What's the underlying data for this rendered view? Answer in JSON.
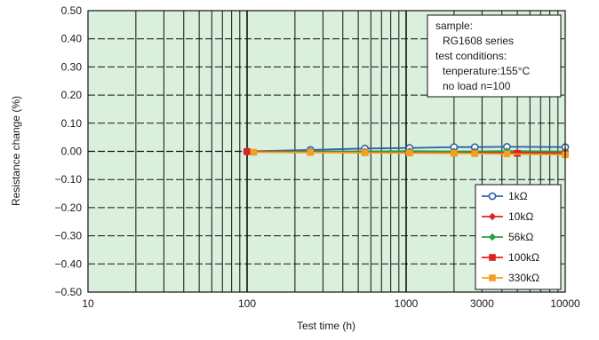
{
  "chart_data": {
    "type": "line",
    "x_scale": "log",
    "xlabel": "Test time (h)",
    "ylabel": "Resistance change (%)",
    "xlim": [
      10,
      10000
    ],
    "ylim": [
      -0.5,
      0.5
    ],
    "x_ticks": [
      {
        "value": 10,
        "label": "10"
      },
      {
        "value": 100,
        "label": "100"
      },
      {
        "value": 1000,
        "label": "1000"
      },
      {
        "value": 3000,
        "label": "3000"
      },
      {
        "value": 10000,
        "label": "10000"
      }
    ],
    "y_ticks": [
      {
        "value": 0.5,
        "label": "0.50"
      },
      {
        "value": 0.4,
        "label": "0.40"
      },
      {
        "value": 0.3,
        "label": "0.30"
      },
      {
        "value": 0.2,
        "label": "0.20"
      },
      {
        "value": 0.1,
        "label": "0.10"
      },
      {
        "value": 0.0,
        "label": "0.00"
      },
      {
        "value": -0.1,
        "label": "−0.10"
      },
      {
        "value": -0.2,
        "label": "−0.20"
      },
      {
        "value": -0.3,
        "label": "−0.30"
      },
      {
        "value": -0.4,
        "label": "−0.40"
      },
      {
        "value": -0.5,
        "label": "−0.50"
      }
    ],
    "grid": true,
    "legend_position": "bottom-right",
    "annotation": {
      "lines": [
        "sample:",
        "RG1608 series",
        "test conditions:",
        "tenperature:155°C",
        "no load   n=100"
      ],
      "position": "top-right"
    },
    "series": [
      {
        "name": "1kΩ",
        "color": "#2f5fa8",
        "marker": "circle",
        "x": [
          100,
          250,
          550,
          1050,
          2000,
          2700,
          4300,
          10000
        ],
        "y": [
          0.0,
          0.005,
          0.01,
          0.012,
          0.015,
          0.015,
          0.016,
          0.015
        ]
      },
      {
        "name": "10kΩ",
        "color": "#e0232a",
        "marker": "diamond",
        "x": [
          100,
          250,
          550,
          1050,
          2000,
          2700,
          4300,
          10000
        ],
        "y": [
          0.0,
          -0.002,
          -0.003,
          -0.003,
          -0.004,
          -0.004,
          -0.004,
          -0.005
        ]
      },
      {
        "name": "56kΩ",
        "color": "#24a24a",
        "marker": "diamond",
        "x": [
          100,
          250,
          550,
          1050,
          2000,
          2700,
          4300,
          10000
        ],
        "y": [
          0.0,
          0.0,
          0.0,
          0.001,
          0.0,
          0.0,
          0.001,
          0.0
        ]
      },
      {
        "name": "100kΩ",
        "color": "#e02020",
        "marker": "square",
        "x": [
          100,
          250,
          550,
          1050,
          2000,
          2700,
          5000,
          10000
        ],
        "y": [
          -0.001,
          -0.003,
          -0.004,
          -0.005,
          -0.006,
          -0.006,
          -0.007,
          -0.008
        ]
      },
      {
        "name": "330kΩ",
        "color": "#f0a023",
        "marker": "square",
        "x": [
          110,
          250,
          550,
          1050,
          2000,
          2700,
          4300,
          10000
        ],
        "y": [
          -0.003,
          -0.004,
          -0.005,
          -0.006,
          -0.007,
          -0.008,
          -0.009,
          -0.012
        ]
      }
    ]
  }
}
